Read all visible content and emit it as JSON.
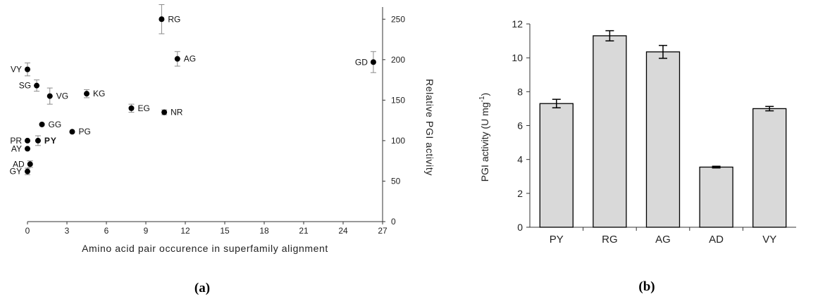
{
  "chart_data": [
    {
      "type": "scatter",
      "xlabel": "Amino acid pair occurence in superfamily alignment",
      "ylabel": "Relative PGI activity",
      "xlim": [
        0,
        27
      ],
      "ylim": [
        0,
        265
      ],
      "x_ticks": [
        0,
        3,
        6,
        9,
        12,
        15,
        18,
        21,
        24,
        27
      ],
      "y_ticks": [
        0,
        50,
        100,
        150,
        200,
        250
      ],
      "y_axis_side": "right",
      "grid": false,
      "highlight_color": "#e8141b",
      "points": [
        {
          "label": "RG",
          "x": 10.2,
          "y": 250,
          "err": 18
        },
        {
          "label": "AG",
          "x": 11.4,
          "y": 201,
          "err": 9
        },
        {
          "label": "GD",
          "x": 26.3,
          "y": 197,
          "err": 13
        },
        {
          "label": "VY",
          "x": 0.0,
          "y": 188,
          "err": 8
        },
        {
          "label": "SG",
          "x": 0.7,
          "y": 168,
          "err": 7
        },
        {
          "label": "VG",
          "x": 1.7,
          "y": 155,
          "err": 10
        },
        {
          "label": "KG",
          "x": 4.5,
          "y": 158,
          "err": 5
        },
        {
          "label": "EG",
          "x": 7.9,
          "y": 140,
          "err": 5
        },
        {
          "label": "NR",
          "x": 10.4,
          "y": 135,
          "err": 3
        },
        {
          "label": "GG",
          "x": 1.1,
          "y": 120,
          "err": 0
        },
        {
          "label": "PG",
          "x": 3.4,
          "y": 111,
          "err": 0
        },
        {
          "label": "PR",
          "x": 0.0,
          "y": 100,
          "err": 0
        },
        {
          "label": "PY",
          "x": 0.8,
          "y": 100,
          "err": 6,
          "highlight": true
        },
        {
          "label": "AY",
          "x": 0.0,
          "y": 90,
          "err": 0
        },
        {
          "label": "AD",
          "x": 0.2,
          "y": 71,
          "err": 4
        },
        {
          "label": "GY",
          "x": 0.0,
          "y": 62,
          "err": 4
        }
      ],
      "panel_label": "(a)"
    },
    {
      "type": "bar",
      "categories": [
        "PY",
        "RG",
        "AG",
        "AD",
        "VY"
      ],
      "values": [
        7.3,
        11.3,
        10.35,
        3.55,
        7.0
      ],
      "errors": [
        0.25,
        0.3,
        0.38,
        0.05,
        0.13
      ],
      "ylabel": "PGI activity (U mg",
      "ylabel_sup": "-1",
      "ylabel_close": ")",
      "ylim": [
        0,
        12
      ],
      "y_ticks": [
        0,
        2,
        4,
        6,
        8,
        10,
        12
      ],
      "bar_color": "#d9d9d9",
      "grid": false,
      "panel_label": "(b)"
    }
  ]
}
